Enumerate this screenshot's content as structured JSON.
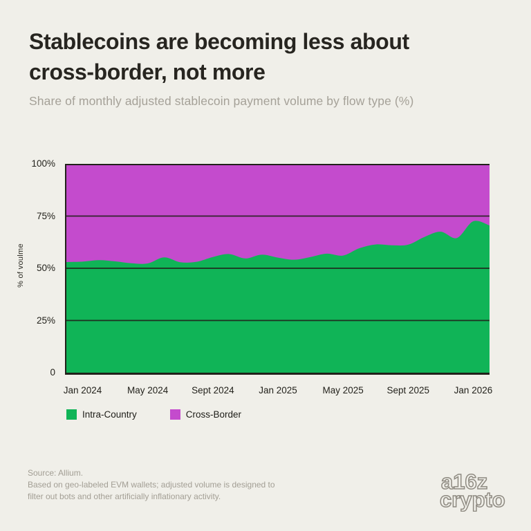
{
  "header": {
    "title_line1": "Stablecoins are becoming less about",
    "title_line2": "cross-border, not more",
    "subtitle": "Share of monthly adjusted stablecoin payment volume by flow type (%)"
  },
  "chart_data": {
    "type": "area",
    "stacked": true,
    "ylabel": "% of voulme",
    "ylim": [
      0,
      100
    ],
    "grid": "horizontal lines at 25, 50, 75, 100",
    "legend_position": "bottom-left",
    "y_ticks": [
      "100%",
      "75%",
      "50%",
      "25%",
      "0"
    ],
    "x_tick_labels": [
      "Jan 2024",
      "May 2024",
      "Sept 2024",
      "Jan 2025",
      "May 2025",
      "Sept 2025",
      "Jan 2026"
    ],
    "x_tick_month_indices": [
      1,
      5,
      9,
      13,
      17,
      21,
      25
    ],
    "months": [
      "Dec 2023",
      "Jan 2024",
      "Feb 2024",
      "Mar 2024",
      "Apr 2024",
      "May 2024",
      "Jun 2024",
      "Jul 2024",
      "Aug 2024",
      "Sep 2024",
      "Oct 2024",
      "Nov 2024",
      "Dec 2024",
      "Jan 2025",
      "Feb 2025",
      "Mar 2025",
      "Apr 2025",
      "May 2025",
      "Jun 2025",
      "Jul 2025",
      "Aug 2025",
      "Sep 2025",
      "Oct 2025",
      "Nov 2025",
      "Dec 2025",
      "Jan 2026",
      "Feb 2026"
    ],
    "series": [
      {
        "name": "Intra-Country",
        "color": "#10b457",
        "values": [
          53.0,
          53.2,
          53.9,
          53.3,
          52.4,
          52.3,
          55.2,
          52.9,
          53.1,
          55.4,
          56.8,
          54.7,
          56.5,
          55.1,
          54.1,
          55.4,
          57.0,
          56.1,
          59.6,
          61.4,
          61.0,
          61.3,
          65.0,
          67.5,
          64.5,
          72.5,
          70.5
        ]
      },
      {
        "name": "Cross-Border",
        "color": "#c44bcd",
        "values": [
          47.0,
          46.8,
          46.1,
          46.7,
          47.6,
          47.7,
          44.8,
          47.1,
          46.9,
          44.6,
          43.2,
          45.3,
          43.5,
          44.9,
          45.9,
          44.6,
          43.0,
          43.9,
          40.4,
          38.6,
          39.0,
          38.7,
          35.0,
          32.5,
          35.5,
          27.5,
          29.5
        ]
      }
    ],
    "legend": [
      {
        "label": "Intra-Country",
        "color": "#10b457"
      },
      {
        "label": "Cross-Border",
        "color": "#c44bcd"
      }
    ]
  },
  "colors": {
    "background": "#f0efe9",
    "title": "#272520",
    "subtitle": "#a5a198",
    "axis": "#21201a",
    "muted_text": "#a29e94",
    "logo": "#8e8a81"
  },
  "footer": {
    "source_line1": "Source: Allium.",
    "source_line2": "Based on geo-labeled EVM wallets; adjusted volume is designed to",
    "source_line3": "filter out bots and other artificially inflationary activity.",
    "logo_line1": "a16z",
    "logo_line2": "crypto"
  }
}
